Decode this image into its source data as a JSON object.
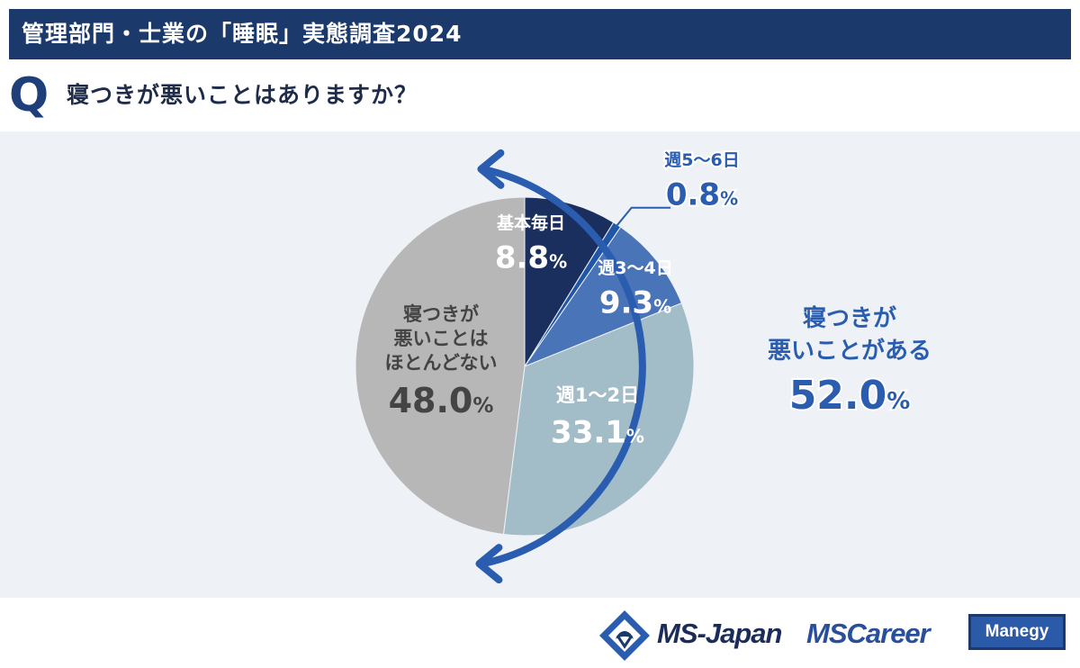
{
  "header": {
    "title": "管理部門・士業の「睡眠」実態調査2024"
  },
  "question": {
    "mark": "Q",
    "text": "寝つきが悪いことはありますか？"
  },
  "chart_data": {
    "type": "pie",
    "categories": [
      "基本毎日",
      "週5〜6日",
      "週3〜4日",
      "週1〜2日",
      "寝つきが悪いことはほとんどない"
    ],
    "values": [
      8.8,
      0.8,
      9.3,
      33.1,
      48.0
    ],
    "unit": "%",
    "colors": [
      "#1b2f5e",
      "#1f56a8",
      "#4a74b8",
      "#a2bcc8",
      "#b7b7b7"
    ],
    "labels": [
      {
        "lines": [
          "基本毎日"
        ],
        "value": "8.8"
      },
      {
        "lines": [
          "週5〜6日"
        ],
        "value": "0.8"
      },
      {
        "lines": [
          "週3〜4日"
        ],
        "value": "9.3"
      },
      {
        "lines": [
          "週1〜2日"
        ],
        "value": "33.1"
      },
      {
        "lines": [
          "寝つきが",
          "悪いことは",
          "ほとんどない"
        ],
        "value": "48.0"
      }
    ],
    "annotation": {
      "lines": [
        "寝つきが",
        "悪いことがある"
      ],
      "value": "52.0",
      "unit": "%"
    }
  },
  "footer": {
    "brand1": "MS-Japan",
    "brand2": "MSCareer",
    "brand3": "Manegy"
  }
}
